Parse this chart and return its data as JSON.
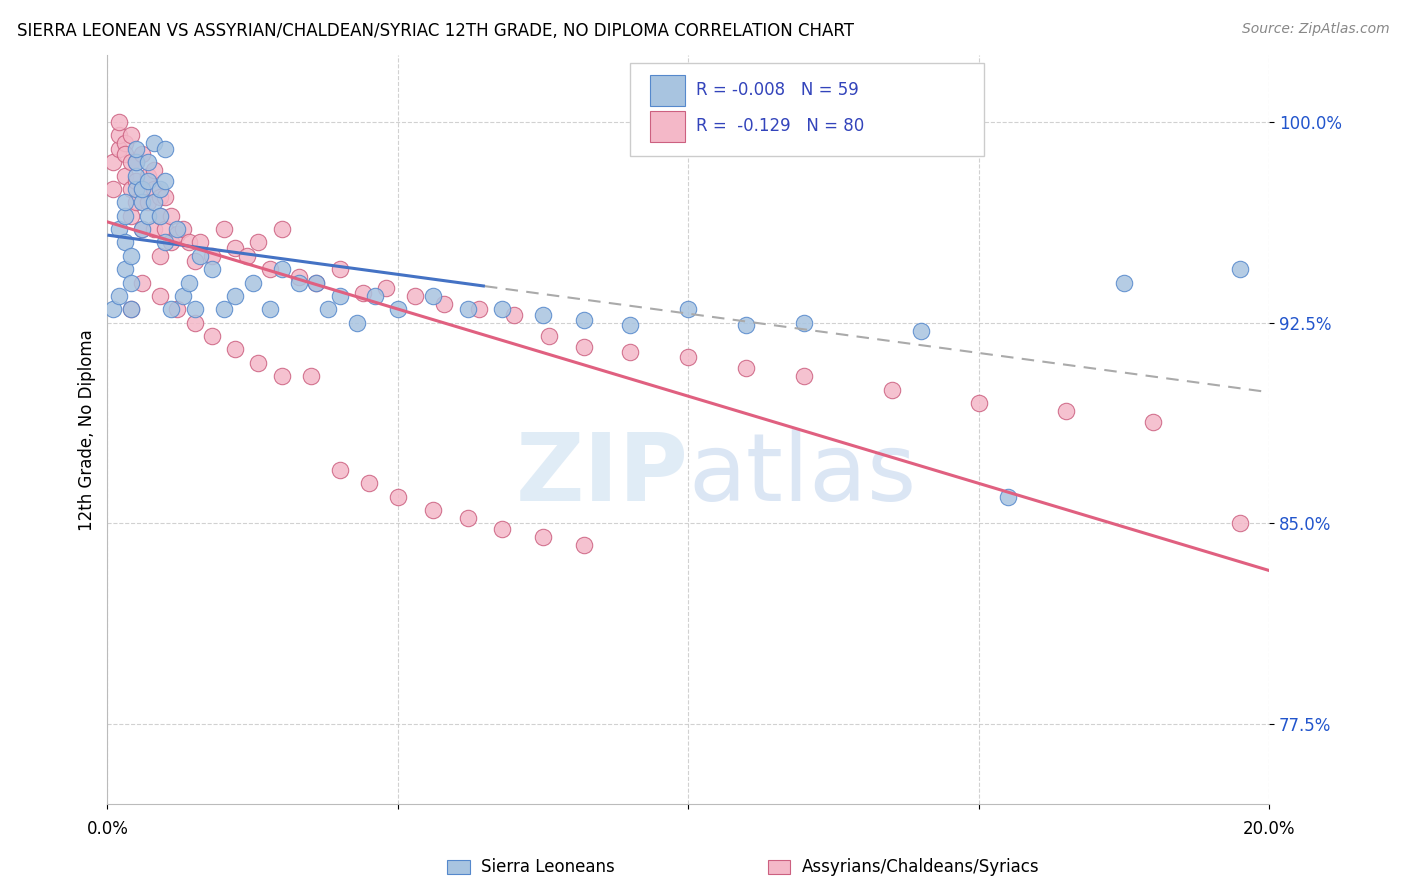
{
  "title": "SIERRA LEONEAN VS ASSYRIAN/CHALDEAN/SYRIAC 12TH GRADE, NO DIPLOMA CORRELATION CHART",
  "source": "Source: ZipAtlas.com",
  "ylabel": "12th Grade, No Diploma",
  "ylabel_ticks": [
    "77.5%",
    "85.0%",
    "92.5%",
    "100.0%"
  ],
  "ylabel_values": [
    0.775,
    0.85,
    0.925,
    1.0
  ],
  "xlim": [
    0.0,
    0.2
  ],
  "ylim": [
    0.745,
    1.025
  ],
  "color_blue": "#a8c4e0",
  "color_blue_line": "#4472c4",
  "color_blue_edge": "#5588cc",
  "color_pink": "#f4b8c8",
  "color_pink_line": "#e06080",
  "color_pink_edge": "#cc6080",
  "color_legend_text": "#3344bb",
  "blue_intercept": 0.9295,
  "blue_slope": -0.008,
  "pink_intercept": 0.948,
  "pink_slope": -0.38,
  "blue_points_x": [
    0.001,
    0.002,
    0.002,
    0.003,
    0.003,
    0.003,
    0.003,
    0.004,
    0.004,
    0.004,
    0.005,
    0.005,
    0.005,
    0.005,
    0.006,
    0.006,
    0.006,
    0.007,
    0.007,
    0.007,
    0.008,
    0.008,
    0.009,
    0.009,
    0.01,
    0.01,
    0.01,
    0.011,
    0.012,
    0.013,
    0.014,
    0.015,
    0.016,
    0.018,
    0.02,
    0.022,
    0.025,
    0.028,
    0.03,
    0.033,
    0.036,
    0.038,
    0.04,
    0.043,
    0.046,
    0.05,
    0.056,
    0.062,
    0.068,
    0.075,
    0.082,
    0.09,
    0.1,
    0.11,
    0.12,
    0.14,
    0.155,
    0.175,
    0.195
  ],
  "blue_points_y": [
    0.93,
    0.935,
    0.96,
    0.955,
    0.945,
    0.965,
    0.97,
    0.93,
    0.94,
    0.95,
    0.975,
    0.98,
    0.985,
    0.99,
    0.96,
    0.97,
    0.975,
    0.965,
    0.978,
    0.985,
    0.97,
    0.992,
    0.965,
    0.975,
    0.955,
    0.978,
    0.99,
    0.93,
    0.96,
    0.935,
    0.94,
    0.93,
    0.95,
    0.945,
    0.93,
    0.935,
    0.94,
    0.93,
    0.945,
    0.94,
    0.94,
    0.93,
    0.935,
    0.925,
    0.935,
    0.93,
    0.935,
    0.93,
    0.93,
    0.928,
    0.926,
    0.924,
    0.93,
    0.924,
    0.925,
    0.922,
    0.86,
    0.94,
    0.945
  ],
  "pink_points_x": [
    0.001,
    0.001,
    0.002,
    0.002,
    0.002,
    0.003,
    0.003,
    0.003,
    0.004,
    0.004,
    0.004,
    0.004,
    0.005,
    0.005,
    0.005,
    0.006,
    0.006,
    0.006,
    0.007,
    0.007,
    0.008,
    0.008,
    0.008,
    0.009,
    0.009,
    0.009,
    0.01,
    0.01,
    0.011,
    0.011,
    0.012,
    0.013,
    0.014,
    0.015,
    0.016,
    0.018,
    0.02,
    0.022,
    0.024,
    0.026,
    0.028,
    0.03,
    0.033,
    0.036,
    0.04,
    0.044,
    0.048,
    0.053,
    0.058,
    0.064,
    0.07,
    0.076,
    0.082,
    0.09,
    0.1,
    0.11,
    0.12,
    0.135,
    0.15,
    0.165,
    0.18,
    0.195,
    0.004,
    0.006,
    0.009,
    0.012,
    0.015,
    0.018,
    0.022,
    0.026,
    0.03,
    0.035,
    0.04,
    0.045,
    0.05,
    0.056,
    0.062,
    0.068,
    0.075,
    0.082
  ],
  "pink_points_y": [
    0.975,
    0.985,
    0.99,
    0.995,
    1.0,
    0.992,
    0.988,
    0.98,
    0.975,
    0.985,
    0.995,
    0.965,
    0.978,
    0.985,
    0.97,
    0.975,
    0.988,
    0.96,
    0.97,
    0.98,
    0.975,
    0.982,
    0.96,
    0.972,
    0.965,
    0.95,
    0.972,
    0.96,
    0.965,
    0.955,
    0.958,
    0.96,
    0.955,
    0.948,
    0.955,
    0.95,
    0.96,
    0.953,
    0.95,
    0.955,
    0.945,
    0.96,
    0.942,
    0.94,
    0.945,
    0.936,
    0.938,
    0.935,
    0.932,
    0.93,
    0.928,
    0.92,
    0.916,
    0.914,
    0.912,
    0.908,
    0.905,
    0.9,
    0.895,
    0.892,
    0.888,
    0.85,
    0.93,
    0.94,
    0.935,
    0.93,
    0.925,
    0.92,
    0.915,
    0.91,
    0.905,
    0.905,
    0.87,
    0.865,
    0.86,
    0.855,
    0.852,
    0.848,
    0.845,
    0.842
  ]
}
